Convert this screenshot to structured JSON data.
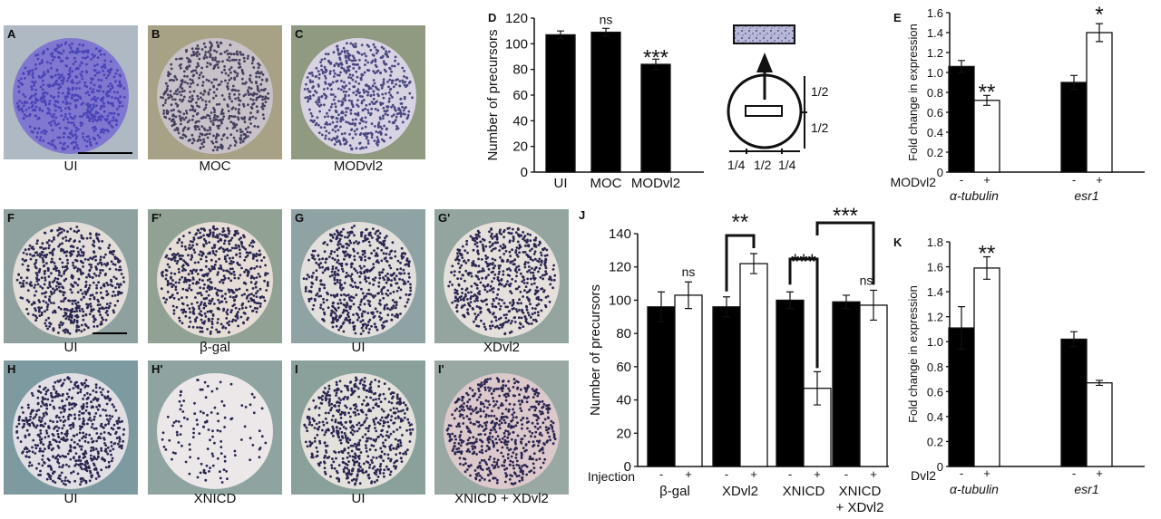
{
  "photos_top": [
    {
      "letter": "A",
      "caption": "UI",
      "bg": "#aeb9c4",
      "dots": "#4a44b8",
      "egg": "#8077d0"
    },
    {
      "letter": "B",
      "caption": "MOC",
      "bg": "#a7a285",
      "dots": "#44405e",
      "egg": "#c9c1c8"
    },
    {
      "letter": "C",
      "caption": "MODvl2",
      "bg": "#8f9a80",
      "dots": "#4a4880",
      "egg": "#d8d3e3"
    }
  ],
  "photos_bottom": [
    {
      "letter": "F",
      "caption": "UI",
      "bg": "#8ea19f",
      "dots": "#2a2650",
      "egg": "#e2ddd8"
    },
    {
      "letter": "F'",
      "caption": "β-gal",
      "bg": "#91a294",
      "dots": "#2a2650",
      "egg": "#e6ded6"
    },
    {
      "letter": "G",
      "caption": "UI",
      "bg": "#8fa3a4",
      "dots": "#2a2650",
      "egg": "#e3dfdc"
    },
    {
      "letter": "G'",
      "caption": "XDvl2",
      "bg": "#93a59e",
      "dots": "#2a2650",
      "egg": "#e5e0db"
    },
    {
      "letter": "H",
      "caption": "UI",
      "bg": "#7d9aa1",
      "dots": "#2a2650",
      "egg": "#e2dfe4"
    },
    {
      "letter": "H'",
      "caption": "XNICD",
      "bg": "#8fa4a1",
      "dots": "#2a2650",
      "egg": "#ece8ea"
    },
    {
      "letter": "I",
      "caption": "UI",
      "bg": "#8aa19b",
      "dots": "#2a2650",
      "egg": "#e4e1dc"
    },
    {
      "letter": "I'",
      "caption": "XNICD + XDvl2",
      "bg": "#9aa8a4",
      "dots": "#2a2650",
      "egg": "#dcc9cc"
    }
  ],
  "panel_letters": {
    "D": "D",
    "E": "E",
    "J": "J",
    "K": "K"
  },
  "schematic": {
    "half_top": "1/2",
    "half_bottom": "1/2",
    "quarter_left": "1/4",
    "half_mid": "1/2",
    "quarter_right": "1/4"
  },
  "chart_data": [
    {
      "id": "D",
      "type": "bar",
      "ylabel": "Number of precursors",
      "ylim": [
        0,
        120
      ],
      "yticks": [
        0,
        20,
        40,
        60,
        80,
        100,
        120
      ],
      "categories": [
        "UI",
        "MOC",
        "MODvl2"
      ],
      "values": [
        107,
        109,
        84
      ],
      "errors": [
        3,
        3,
        4
      ],
      "annotations": [
        "",
        "ns",
        "***"
      ],
      "colors": {
        "bar": "#000000"
      }
    },
    {
      "id": "E",
      "type": "bar",
      "ylabel": "Fold change in expression",
      "ylim": [
        0,
        1.6
      ],
      "yticks": [
        "0",
        "0.2",
        "0.4",
        "0.6",
        "0.8",
        "1.0",
        "1.2",
        "1.4",
        "1.6"
      ],
      "row_label": "MODvl2",
      "signs": [
        "-",
        "+",
        "-",
        "+"
      ],
      "genes": [
        "α-tubulin",
        "esr1"
      ],
      "series": [
        {
          "name": "-",
          "values": [
            1.06,
            0.9
          ],
          "errors": [
            0.06,
            0.07
          ],
          "color": "#000000"
        },
        {
          "name": "+",
          "values": [
            0.72,
            1.4
          ],
          "errors": [
            0.05,
            0.09
          ],
          "color": "#ffffff"
        }
      ],
      "annotations": [
        "",
        "**",
        "",
        "*"
      ]
    },
    {
      "id": "J",
      "type": "bar",
      "ylabel": "Number of precursors",
      "ylim": [
        0,
        140
      ],
      "yticks": [
        0,
        20,
        40,
        60,
        80,
        100,
        120,
        140
      ],
      "row_label": "Injection",
      "signs": [
        "-",
        "+",
        "-",
        "+",
        "-",
        "+",
        "-",
        "+"
      ],
      "groups": [
        "β-gal",
        "XDvl2",
        "XNICD",
        "XNICD",
        "+ XDvl2"
      ],
      "series": [
        {
          "name": "-",
          "values": [
            96,
            96,
            100,
            99
          ],
          "errors": [
            9,
            6,
            5,
            4
          ],
          "color": "#000000"
        },
        {
          "name": "+",
          "values": [
            103,
            122,
            47,
            97
          ],
          "errors": [
            8,
            6,
            10,
            9
          ],
          "color": "#ffffff"
        }
      ],
      "annotations": [
        "ns",
        "**",
        "***",
        "ns",
        "***"
      ]
    },
    {
      "id": "K",
      "type": "bar",
      "ylabel": "Fold change in expression",
      "ylim": [
        0,
        1.8
      ],
      "yticks": [
        "0",
        "0.2",
        "0.4",
        "0.6",
        "0.8",
        "1.0",
        "1.2",
        "1.4",
        "1.6",
        "1.8"
      ],
      "row_label": "Dvl2",
      "signs": [
        "-",
        "+",
        "-",
        "+"
      ],
      "genes": [
        "α-tubulin",
        "esr1"
      ],
      "series": [
        {
          "name": "-",
          "values": [
            1.11,
            1.02
          ],
          "errors": [
            0.17,
            0.06
          ],
          "color": "#000000"
        },
        {
          "name": "+",
          "values": [
            1.59,
            0.67
          ],
          "errors": [
            0.09,
            0.02
          ],
          "color": "#ffffff"
        }
      ],
      "annotations": [
        "",
        "**"
      ]
    }
  ]
}
